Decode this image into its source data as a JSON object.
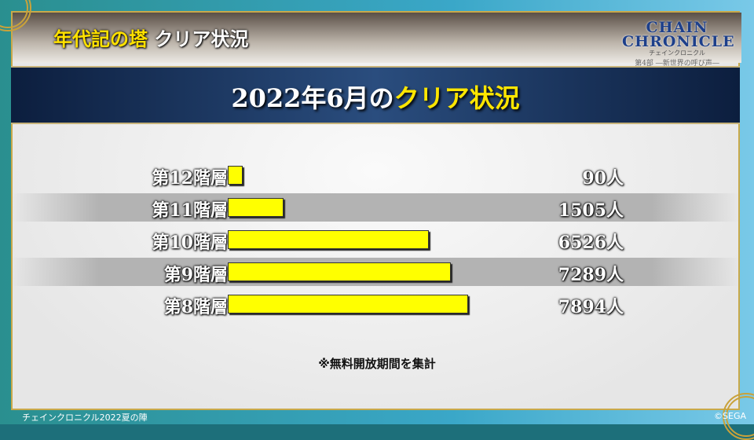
{
  "header": {
    "title_highlight": "年代記の塔",
    "title_rest": " クリア状況"
  },
  "logo": {
    "line1": "CHAIN",
    "line2": "CHRONICLE",
    "kana": "チェインクロニクル",
    "subtitle": "第4部 ―新世界の呼び声―"
  },
  "banner": {
    "prefix": "2022年6月の",
    "highlight": "クリア状況"
  },
  "chart_data": {
    "type": "bar",
    "orientation": "horizontal",
    "title": "2022年6月のクリア状況",
    "categories": [
      "第12階層",
      "第11階層",
      "第10階層",
      "第9階層",
      "第8階層"
    ],
    "values": [
      90,
      1505,
      6526,
      7289,
      7894
    ],
    "value_labels": [
      "90人",
      "1505人",
      "6526人",
      "7289人",
      "7894人"
    ],
    "bar_color": "#ffff00",
    "grid": false
  },
  "note": "※無料開放期間を集計",
  "footer": {
    "left": "チェインクロニクル2022夏の陣",
    "right": "©SEGA"
  }
}
